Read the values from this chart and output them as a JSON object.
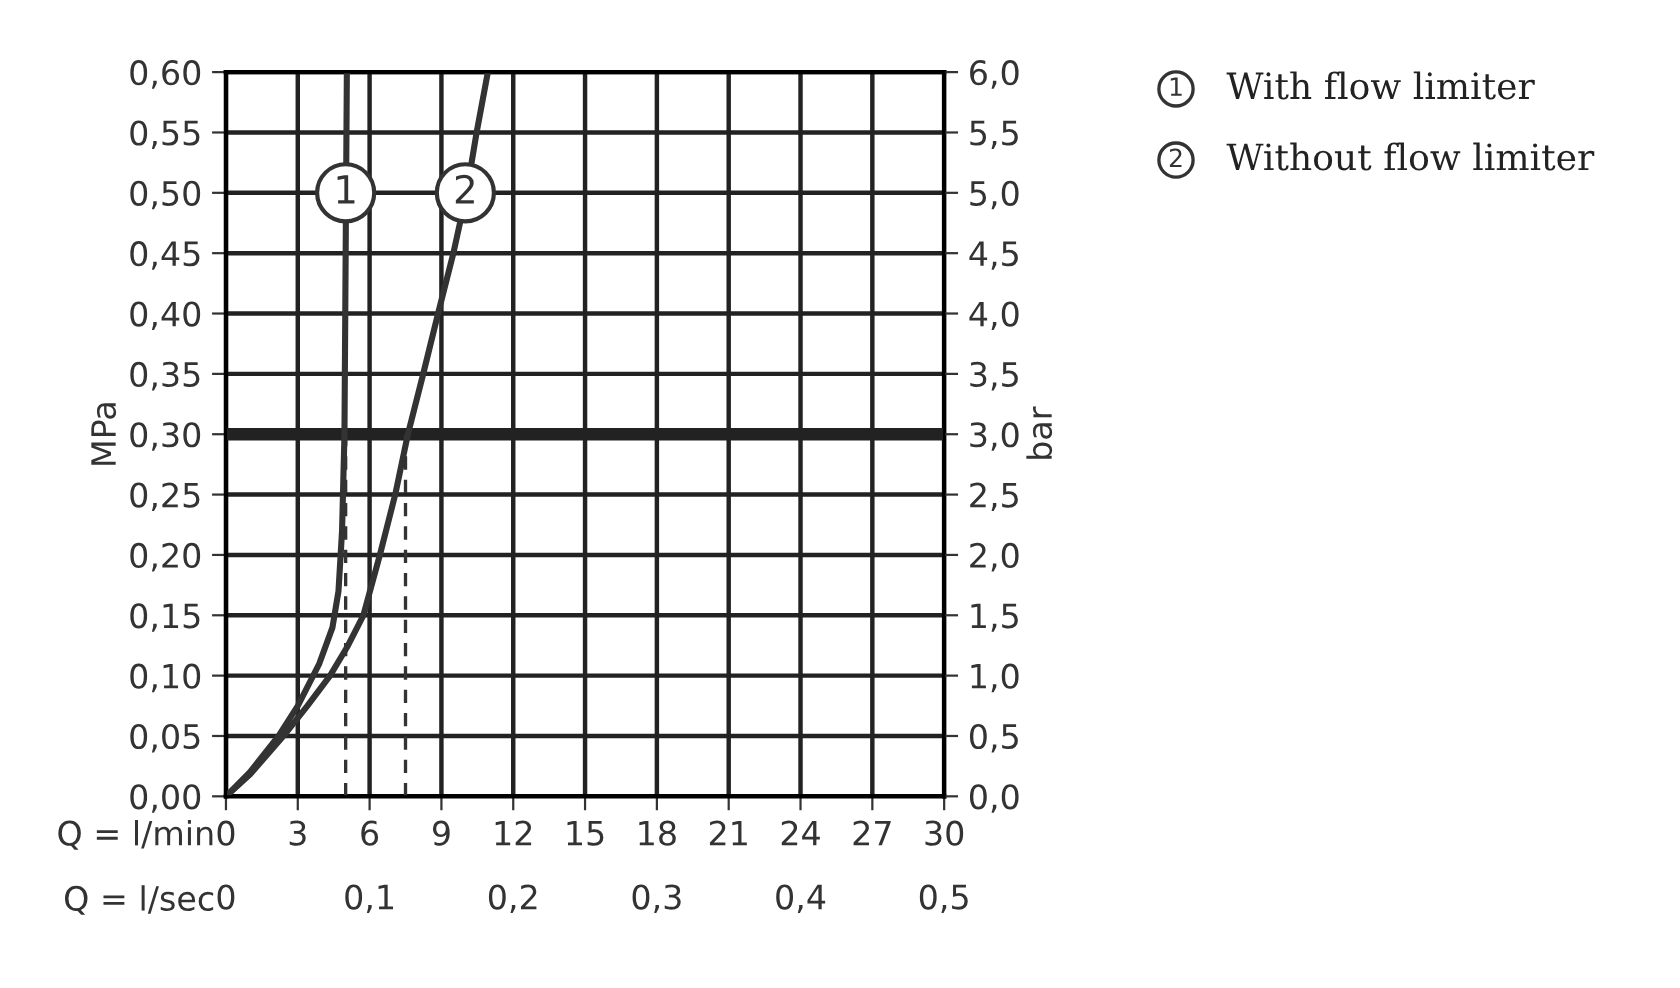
{
  "chart_data": {
    "type": "line",
    "xlabel": "Q = l/min",
    "x2label": "Q = l/sec",
    "ylabel": "MPa",
    "y2label": "bar",
    "xlim": [
      0,
      30
    ],
    "xticks": [
      0,
      3,
      6,
      9,
      12,
      15,
      18,
      21,
      24,
      27,
      30
    ],
    "x2lim": [
      0,
      0.5
    ],
    "x2ticks": [
      {
        "value": 0,
        "label": "0"
      },
      {
        "value": 0.1,
        "label": "0,1"
      },
      {
        "value": 0.2,
        "label": "0,2"
      },
      {
        "value": 0.3,
        "label": "0,3"
      },
      {
        "value": 0.4,
        "label": "0,4"
      },
      {
        "value": 0.5,
        "label": "0,5"
      }
    ],
    "ylim": [
      0,
      0.6
    ],
    "yticks": [
      {
        "value": 0,
        "label": "0,00"
      },
      {
        "value": 0.05,
        "label": "0,05"
      },
      {
        "value": 0.1,
        "label": "0,10"
      },
      {
        "value": 0.15,
        "label": "0,15"
      },
      {
        "value": 0.2,
        "label": "0,20"
      },
      {
        "value": 0.25,
        "label": "0,25"
      },
      {
        "value": 0.3,
        "label": "0,30"
      },
      {
        "value": 0.35,
        "label": "0,35"
      },
      {
        "value": 0.4,
        "label": "0,40"
      },
      {
        "value": 0.45,
        "label": "0,45"
      },
      {
        "value": 0.5,
        "label": "0,50"
      },
      {
        "value": 0.55,
        "label": "0,55"
      },
      {
        "value": 0.6,
        "label": "0,60"
      }
    ],
    "y2lim": [
      0,
      6
    ],
    "y2ticks": [
      {
        "value": 0,
        "label": "0,0"
      },
      {
        "value": 0.5,
        "label": "0,5"
      },
      {
        "value": 1,
        "label": "1,0"
      },
      {
        "value": 1.5,
        "label": "1,5"
      },
      {
        "value": 2,
        "label": "2,0"
      },
      {
        "value": 2.5,
        "label": "2,5"
      },
      {
        "value": 3,
        "label": "3,0"
      },
      {
        "value": 3.5,
        "label": "3,5"
      },
      {
        "value": 4,
        "label": "4,0"
      },
      {
        "value": 4.5,
        "label": "4,5"
      },
      {
        "value": 5,
        "label": "5,0"
      },
      {
        "value": 5.5,
        "label": "5,5"
      },
      {
        "value": 6,
        "label": "6,0"
      }
    ],
    "grid": true,
    "legend": "right",
    "marker": "none",
    "line_style": "solid",
    "series": [
      {
        "name": "With flow limiter",
        "color": "#333333",
        "x": [
          0,
          1,
          2.2,
          3.0,
          3.9,
          4.45,
          4.7,
          4.85,
          4.95,
          5.0,
          5.05
        ],
        "values": [
          0,
          0.02,
          0.05,
          0.075,
          0.11,
          0.14,
          0.17,
          0.22,
          0.3,
          0.45,
          0.6
        ]
      },
      {
        "name": "Without flow limiter",
        "color": "#333333",
        "x": [
          0,
          1,
          2.4,
          3.4,
          4.35,
          5.1,
          5.74,
          6.43,
          7.07,
          7.6,
          8.24,
          8.86,
          9.5,
          10.05,
          10.47,
          10.94
        ],
        "values": [
          0,
          0.018,
          0.05,
          0.075,
          0.1,
          0.125,
          0.15,
          0.2,
          0.25,
          0.3,
          0.35,
          0.4,
          0.45,
          0.5,
          0.55,
          0.6
        ]
      }
    ],
    "ref_lines": [
      {
        "axis": "y",
        "value": 0.3,
        "color": "#222222",
        "line_style": "solid"
      },
      {
        "axis": "x",
        "value": 5,
        "color": "#333333",
        "line_style": "dashed"
      },
      {
        "axis": "x",
        "value": 7.5,
        "color": "#333333",
        "line_style": "dashed"
      }
    ],
    "annotations": [
      {
        "text": "1",
        "x": 5,
        "y": 0.5
      },
      {
        "text": "2",
        "x": 10,
        "y": 0.5
      }
    ]
  }
}
